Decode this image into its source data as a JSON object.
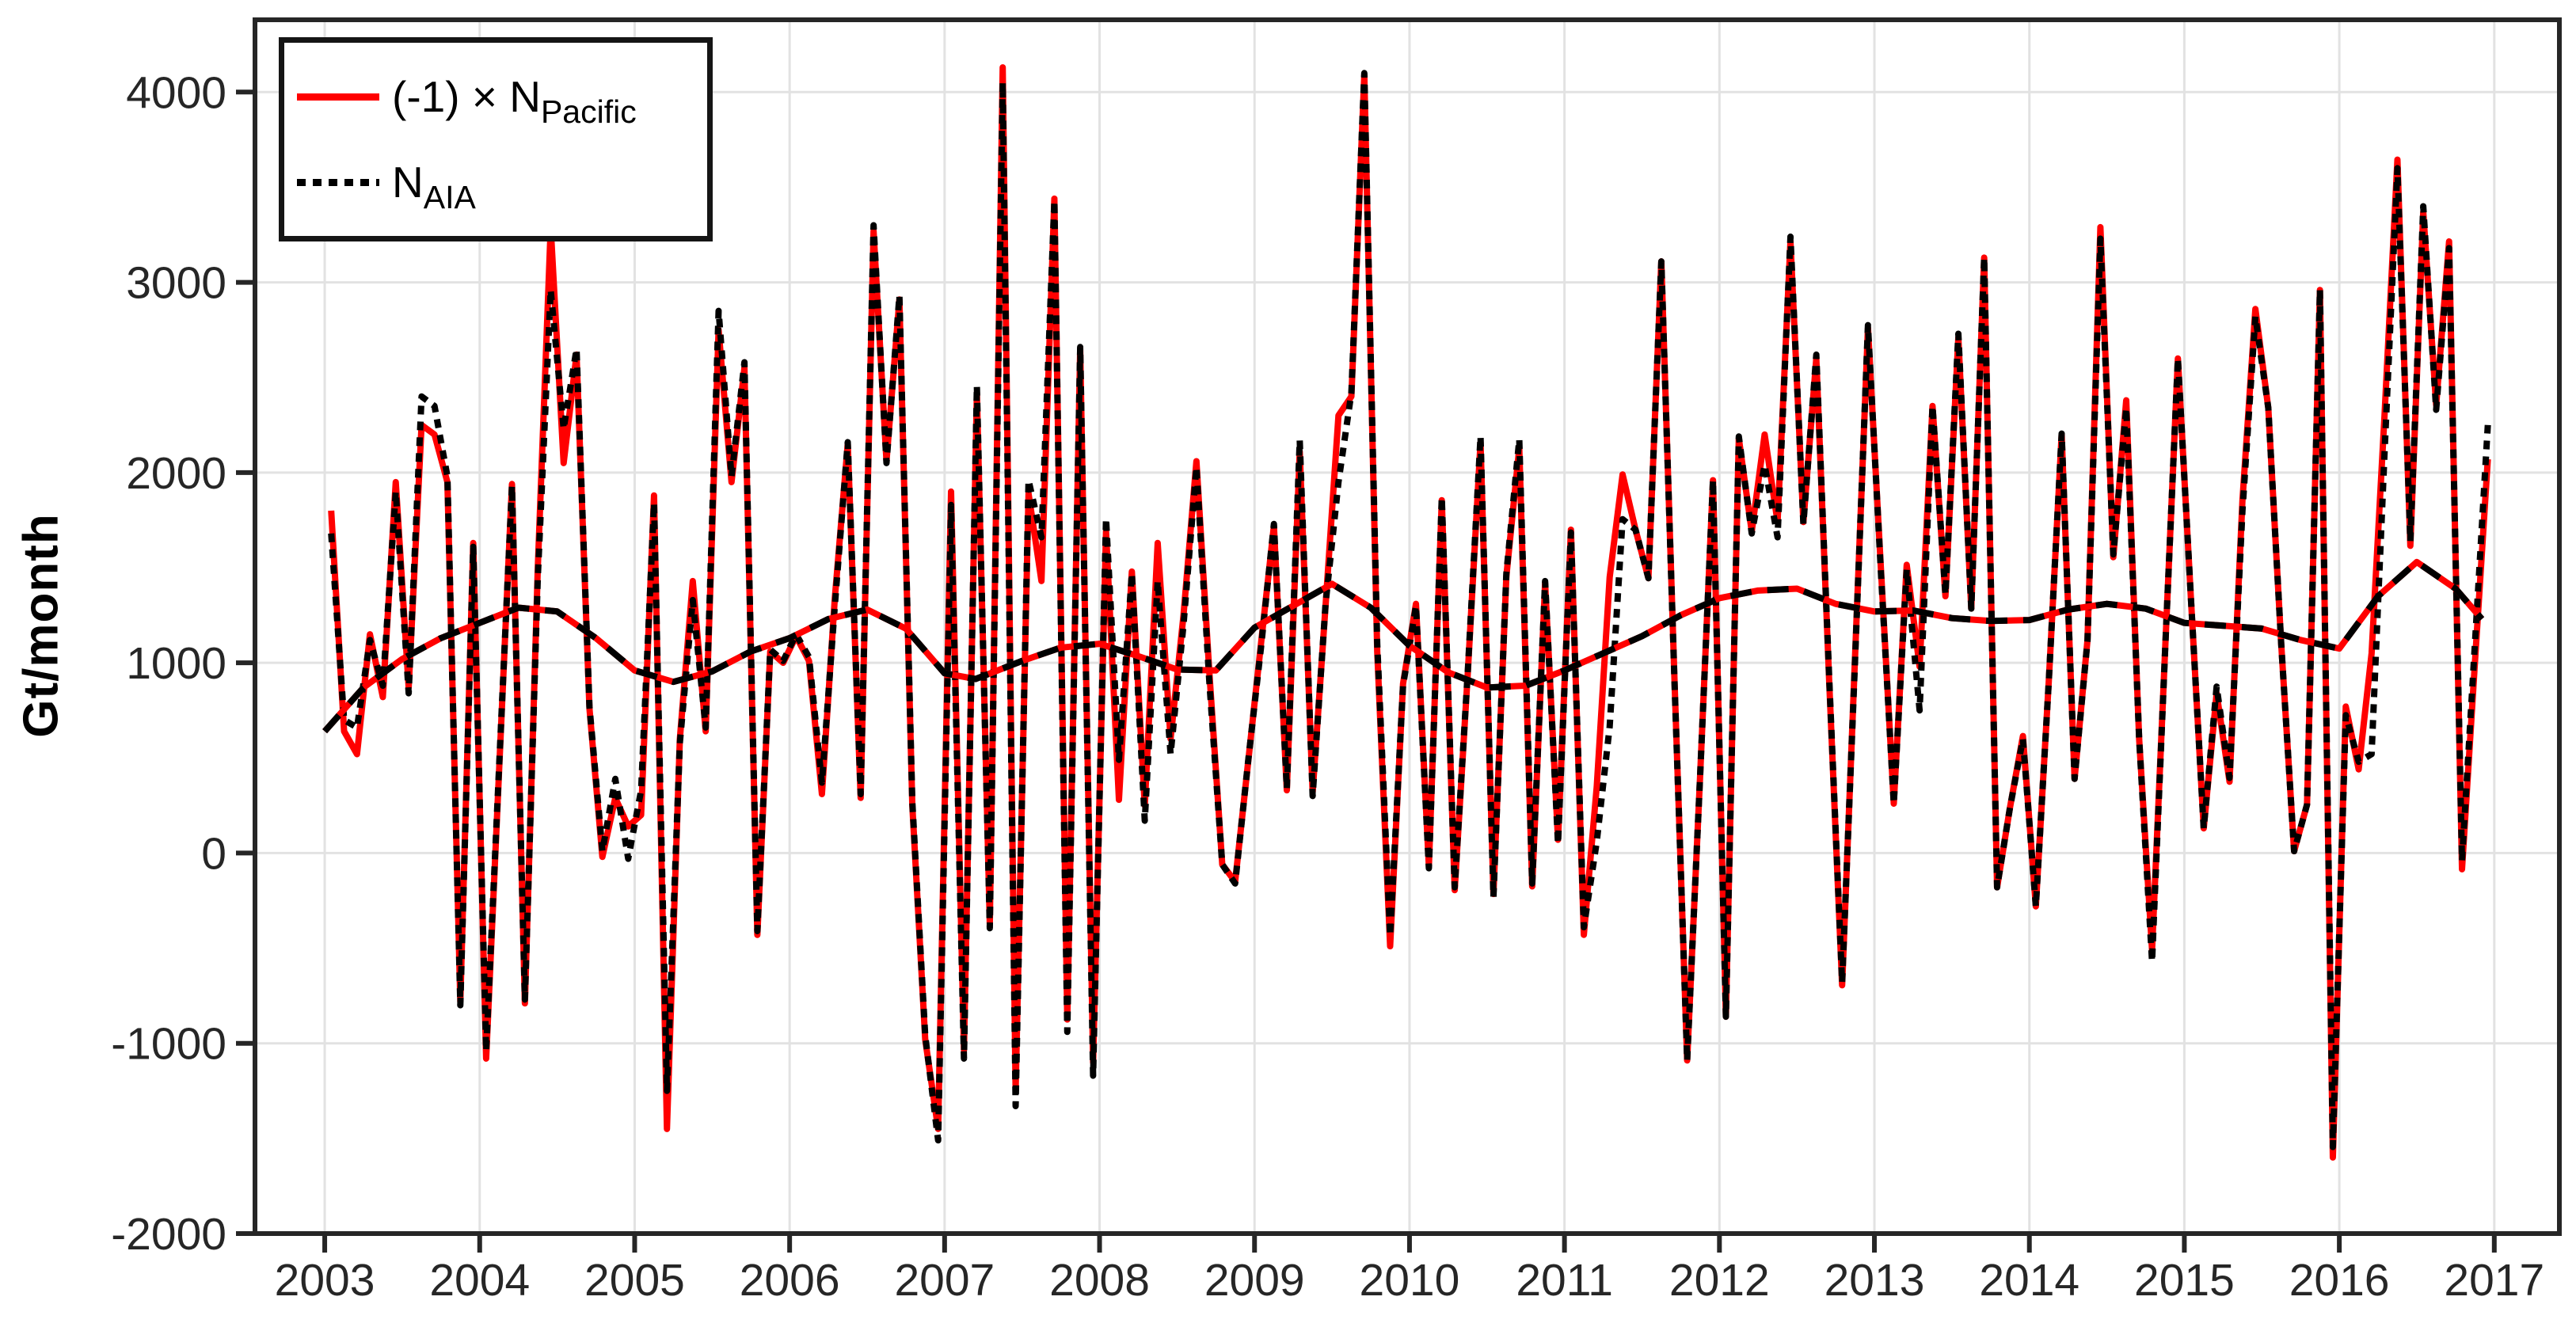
{
  "ylabel": "Gt/month",
  "background_color": "#ffffff",
  "legend": {
    "position": "top-left",
    "border_color": "#151515",
    "entries": [
      {
        "label_pre": "(-1) × N",
        "label_sub": "Pacific",
        "sample_class": "sample sample-solid-red"
      },
      {
        "label_pre": "N",
        "label_sub": "AIA",
        "sample_class": "sample sample-dotted-black"
      }
    ]
  },
  "colors": {
    "red_series": "#ff0000",
    "black_series": "#000000",
    "axis": "#262626",
    "grid": "#e2e2e2",
    "tick_label": "#262626"
  },
  "chart_data": {
    "type": "line",
    "title": "",
    "xlabel": "",
    "ylabel": "Gt/month",
    "grid": true,
    "legend_position": "top-left",
    "xlim": [
      2002.55,
      2017.42
    ],
    "ylim": [
      -2000,
      4380
    ],
    "x_ticks": [
      2003,
      2004,
      2005,
      2006,
      2007,
      2008,
      2009,
      2010,
      2011,
      2012,
      2013,
      2014,
      2015,
      2016,
      2017
    ],
    "y_ticks": [
      -2000,
      -1000,
      0,
      1000,
      2000,
      3000,
      4000
    ],
    "monthly_start": "2003-01",
    "monthly_end": "2016-12",
    "series": [
      {
        "name": "(-1) x N_Pacific (monthly)",
        "style": "solid",
        "color": "#ff0000",
        "values": [
          1800,
          640,
          520,
          1150,
          820,
          1950,
          870,
          2250,
          2200,
          1950,
          -780,
          1630,
          -1080,
          430,
          1940,
          -790,
          1500,
          3290,
          2050,
          2620,
          760,
          -20,
          290,
          140,
          200,
          1880,
          -1450,
          600,
          1430,
          640,
          2750,
          1950,
          2550,
          -430,
          1060,
          1000,
          1140,
          1010,
          310,
          1340,
          2150,
          290,
          3270,
          2060,
          2910,
          250,
          -980,
          -1450,
          1900,
          -1035,
          2420,
          -375,
          4130,
          -1250,
          1890,
          1430,
          3440,
          -875,
          2650,
          -1100,
          1690,
          280,
          1480,
          250,
          1630,
          600,
          1250,
          2060,
          950,
          -60,
          -150,
          475,
          1100,
          1720,
          330,
          2110,
          320,
          1300,
          2300,
          2400,
          4090,
          1060,
          -490,
          890,
          1310,
          -70,
          1855,
          -195,
          930,
          2160,
          -215,
          1455,
          2130,
          -175,
          1420,
          70,
          1700,
          -430,
          350,
          1450,
          1990,
          1700,
          1445,
          3110,
          950,
          -1090,
          400,
          1960,
          -860,
          2180,
          1690,
          2200,
          1740,
          3215,
          1740,
          2600,
          900,
          -695,
          1030,
          2760,
          1500,
          260,
          1515,
          980,
          2350,
          1350,
          2710,
          1285,
          3130,
          -180,
          240,
          615,
          -280,
          900,
          2200,
          390,
          1120,
          3290,
          1555,
          2380,
          600,
          -510,
          1050,
          2600,
          1350,
          130,
          840,
          375,
          1855,
          2860,
          2340,
          1100,
          10,
          255,
          2960,
          -1600,
          770,
          440,
          1050,
          2300,
          3645,
          1615,
          3370,
          2355,
          3215,
          -85,
          1000,
          2070
        ]
      },
      {
        "name": "N_AIA (monthly)",
        "style": "dotted",
        "color": "#000000",
        "values": [
          1680,
          700,
          660,
          1120,
          880,
          1900,
          840,
          2400,
          2350,
          1980,
          -800,
          1610,
          -1040,
          450,
          1930,
          -770,
          1450,
          2960,
          2230,
          2650,
          770,
          10,
          390,
          -30,
          330,
          1840,
          -1250,
          580,
          1330,
          660,
          2850,
          1980,
          2580,
          -410,
          1070,
          1010,
          1150,
          1030,
          370,
          1300,
          2160,
          310,
          3300,
          2050,
          2930,
          270,
          -960,
          -1510,
          1830,
          -1080,
          2455,
          -395,
          4050,
          -1330,
          1960,
          1660,
          3430,
          -940,
          2660,
          -1170,
          1760,
          490,
          1470,
          170,
          1430,
          520,
          1200,
          2030,
          900,
          -60,
          -160,
          480,
          1080,
          1730,
          340,
          2170,
          300,
          1310,
          1950,
          2420,
          4100,
          1100,
          -435,
          880,
          1300,
          -80,
          1870,
          -180,
          940,
          2190,
          -230,
          1470,
          2175,
          -160,
          1430,
          50,
          1685,
          -390,
          60,
          665,
          1755,
          1700,
          1445,
          3110,
          940,
          -1090,
          400,
          1960,
          -860,
          2190,
          1680,
          2040,
          1660,
          3240,
          1730,
          2620,
          920,
          -680,
          1010,
          2775,
          1480,
          260,
          1490,
          750,
          2350,
          1360,
          2730,
          1285,
          3130,
          -180,
          240,
          600,
          -280,
          900,
          2205,
          390,
          1115,
          3230,
          1570,
          2340,
          600,
          -570,
          1050,
          2600,
          1350,
          130,
          875,
          395,
          1800,
          2820,
          2340,
          1100,
          10,
          255,
          2960,
          -1545,
          725,
          480,
          520,
          2100,
          3600,
          1640,
          3400,
          2330,
          3180,
          -40,
          1100,
          2250
        ]
      },
      {
        "name": "(-1) x N_Pacific (low-pass filtered)",
        "style": "solid",
        "color": "#ff0000",
        "x": [
          2003.0,
          2003.25,
          2003.5,
          2003.75,
          2004.0,
          2004.25,
          2004.5,
          2004.75,
          2005.0,
          2005.25,
          2005.5,
          2005.75,
          2006.0,
          2006.25,
          2006.5,
          2006.75,
          2007.0,
          2007.2,
          2007.5,
          2007.75,
          2008.0,
          2008.25,
          2008.5,
          2008.75,
          2009.0,
          2009.25,
          2009.5,
          2009.75,
          2010.0,
          2010.25,
          2010.5,
          2010.75,
          2011.0,
          2011.25,
          2011.5,
          2011.75,
          2012.0,
          2012.25,
          2012.5,
          2012.75,
          2013.0,
          2013.25,
          2013.5,
          2013.75,
          2014.0,
          2014.25,
          2014.5,
          2014.75,
          2015.0,
          2015.25,
          2015.5,
          2015.75,
          2016.0,
          2016.25,
          2016.5,
          2016.75,
          2016.92
        ],
        "values": [
          640,
          870,
          1020,
          1130,
          1210,
          1290,
          1270,
          1130,
          960,
          900,
          955,
          1060,
          1130,
          1230,
          1280,
          1180,
          945,
          915,
          1010,
          1080,
          1100,
          1035,
          965,
          960,
          1185,
          1300,
          1415,
          1290,
          1090,
          950,
          870,
          880,
          960,
          1050,
          1140,
          1250,
          1340,
          1380,
          1390,
          1310,
          1270,
          1275,
          1235,
          1220,
          1225,
          1280,
          1310,
          1285,
          1210,
          1195,
          1180,
          1120,
          1075,
          1350,
          1530,
          1390,
          1230
        ]
      },
      {
        "name": "N_AIA (low-pass filtered)",
        "style": "dashed",
        "color": "#000000",
        "x": [
          2003.0,
          2003.25,
          2003.5,
          2003.75,
          2004.0,
          2004.25,
          2004.5,
          2004.75,
          2005.0,
          2005.25,
          2005.5,
          2005.75,
          2006.0,
          2006.25,
          2006.5,
          2006.75,
          2007.0,
          2007.2,
          2007.5,
          2007.75,
          2008.0,
          2008.25,
          2008.5,
          2008.75,
          2009.0,
          2009.25,
          2009.5,
          2009.75,
          2010.0,
          2010.25,
          2010.5,
          2010.75,
          2011.0,
          2011.25,
          2011.5,
          2011.75,
          2012.0,
          2012.25,
          2012.5,
          2012.75,
          2013.0,
          2013.25,
          2013.5,
          2013.75,
          2014.0,
          2014.25,
          2014.5,
          2014.75,
          2015.0,
          2015.25,
          2015.5,
          2015.75,
          2016.0,
          2016.25,
          2016.5,
          2016.75,
          2016.92
        ],
        "values": [
          640,
          870,
          1020,
          1130,
          1210,
          1290,
          1270,
          1130,
          960,
          900,
          955,
          1060,
          1130,
          1230,
          1280,
          1180,
          945,
          915,
          1010,
          1080,
          1100,
          1035,
          965,
          960,
          1185,
          1300,
          1415,
          1290,
          1090,
          950,
          870,
          880,
          960,
          1050,
          1140,
          1250,
          1340,
          1380,
          1390,
          1310,
          1270,
          1275,
          1235,
          1220,
          1225,
          1280,
          1310,
          1285,
          1210,
          1195,
          1180,
          1120,
          1075,
          1350,
          1530,
          1390,
          1230
        ]
      }
    ]
  }
}
